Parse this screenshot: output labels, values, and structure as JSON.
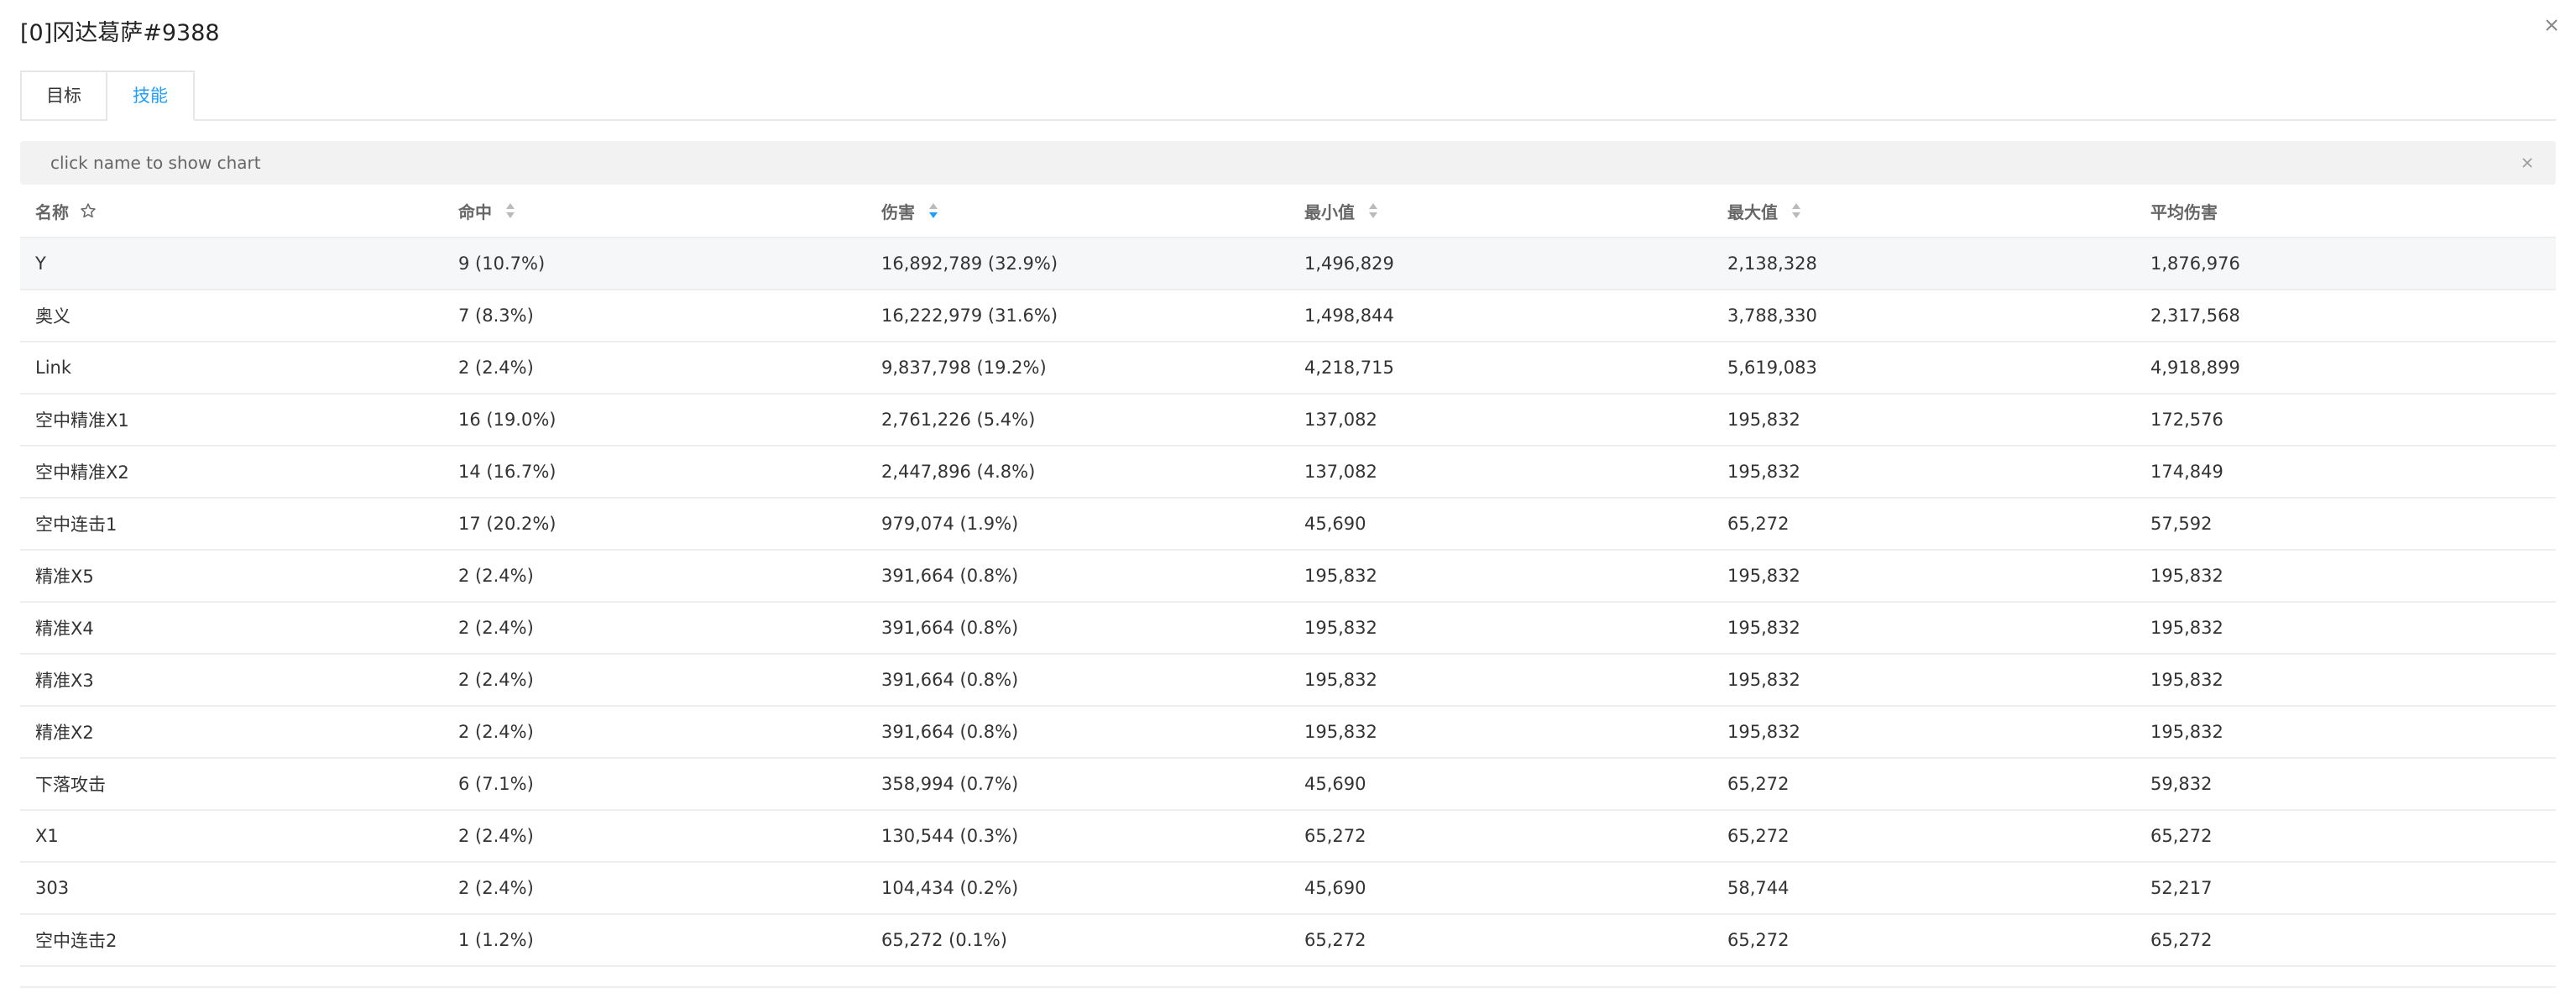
{
  "header": {
    "title": "[0]冈达葛萨#9388"
  },
  "tabs": [
    {
      "label": "目标",
      "active": false
    },
    {
      "label": "技能",
      "active": true
    }
  ],
  "hint": {
    "text": "click name to show chart"
  },
  "colors": {
    "accent": "#1e9fff",
    "sort_active": "#1e9fff",
    "sort_inactive": "#bbbbbb"
  },
  "table": {
    "columns": [
      "名称",
      "命中",
      "伤害",
      "最小值",
      "最大值",
      "平均伤害"
    ],
    "sorted_by": "伤害",
    "rows": [
      [
        "Y",
        "9 (10.7%)",
        "16,892,789 (32.9%)",
        "1,496,829",
        "2,138,328",
        "1,876,976"
      ],
      [
        "奥义",
        "7 (8.3%)",
        "16,222,979 (31.6%)",
        "1,498,844",
        "3,788,330",
        "2,317,568"
      ],
      [
        "Link",
        "2 (2.4%)",
        "9,837,798 (19.2%)",
        "4,218,715",
        "5,619,083",
        "4,918,899"
      ],
      [
        "空中精准X1",
        "16 (19.0%)",
        "2,761,226 (5.4%)",
        "137,082",
        "195,832",
        "172,576"
      ],
      [
        "空中精准X2",
        "14 (16.7%)",
        "2,447,896 (4.8%)",
        "137,082",
        "195,832",
        "174,849"
      ],
      [
        "空中连击1",
        "17 (20.2%)",
        "979,074 (1.9%)",
        "45,690",
        "65,272",
        "57,592"
      ],
      [
        "精准X5",
        "2 (2.4%)",
        "391,664 (0.8%)",
        "195,832",
        "195,832",
        "195,832"
      ],
      [
        "精准X4",
        "2 (2.4%)",
        "391,664 (0.8%)",
        "195,832",
        "195,832",
        "195,832"
      ],
      [
        "精准X3",
        "2 (2.4%)",
        "391,664 (0.8%)",
        "195,832",
        "195,832",
        "195,832"
      ],
      [
        "精准X2",
        "2 (2.4%)",
        "391,664 (0.8%)",
        "195,832",
        "195,832",
        "195,832"
      ],
      [
        "下落攻击",
        "6 (7.1%)",
        "358,994 (0.7%)",
        "45,690",
        "65,272",
        "59,832"
      ],
      [
        "X1",
        "2 (2.4%)",
        "130,544 (0.3%)",
        "65,272",
        "65,272",
        "65,272"
      ],
      [
        "303",
        "2 (2.4%)",
        "104,434 (0.2%)",
        "45,690",
        "58,744",
        "52,217"
      ],
      [
        "空中连击2",
        "1 (1.2%)",
        "65,272 (0.1%)",
        "65,272",
        "65,272",
        "65,272"
      ]
    ]
  }
}
